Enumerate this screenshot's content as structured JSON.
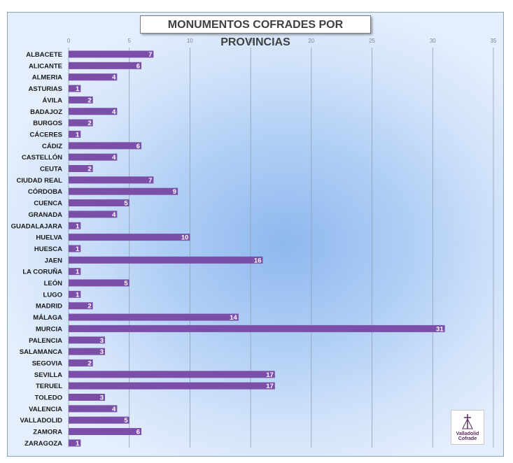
{
  "chart_data": {
    "type": "bar",
    "orientation": "horizontal",
    "title": "MONUMENTOS COFRADES POR PROVINCIAS",
    "xlim": [
      0,
      35
    ],
    "xticks": [
      0,
      5,
      10,
      15,
      20,
      25,
      30,
      35
    ],
    "grid": true,
    "bar_color": "#7b4fa8",
    "categories": [
      "ALBACETE",
      "ALICANTE",
      "ALMERIA",
      "ASTURIAS",
      "ÁVILA",
      "BADAJOZ",
      "BURGOS",
      "CÁCERES",
      "CÁDIZ",
      "CASTELLÓN",
      "CEUTA",
      "CIUDAD REAL",
      "CÓRDOBA",
      "CUENCA",
      "GRANADA",
      "GUADALAJARA",
      "HUELVA",
      "HUESCA",
      "JAEN",
      "LA CORUÑA",
      "LEÓN",
      "LUGO",
      "MADRID",
      "MÁLAGA",
      "MURCIA",
      "PALENCIA",
      "SALAMANCA",
      "SEGOVIA",
      "SEVILLA",
      "TERUEL",
      "TOLEDO",
      "VALENCIA",
      "VALLADOLID",
      "ZAMORA",
      "ZARAGOZA"
    ],
    "values": [
      7,
      6,
      4,
      1,
      2,
      4,
      2,
      1,
      6,
      4,
      2,
      7,
      9,
      5,
      4,
      1,
      10,
      1,
      16,
      1,
      5,
      1,
      2,
      14,
      31,
      3,
      3,
      2,
      17,
      17,
      3,
      4,
      5,
      6,
      1
    ]
  },
  "logo": {
    "line1": "Valladolid",
    "line2": "Cofrade"
  }
}
